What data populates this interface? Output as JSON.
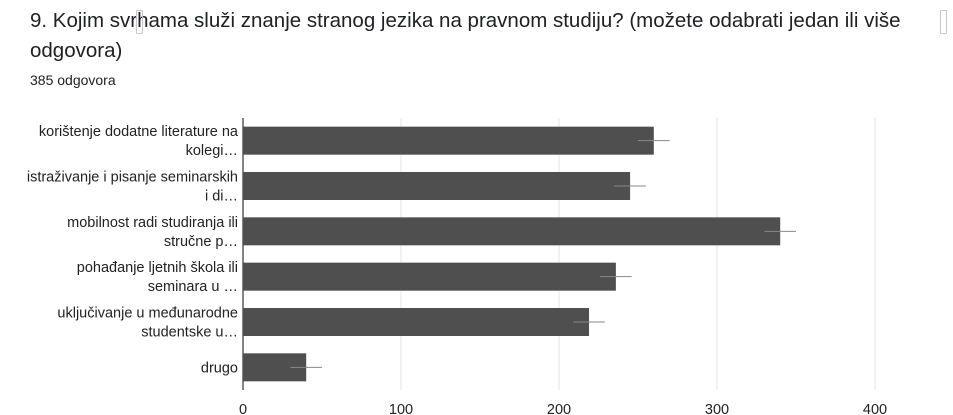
{
  "question": {
    "title": "9. Kojim svrhama služi znanje stranog jezika na pravnom studiju? (možete odabrati jedan ili više odgovora)",
    "response_count": "385 odgovora"
  },
  "colors": {
    "bar": "#4f4f4f",
    "grid": "#e6e6e6",
    "axis": "#333333",
    "error_bar": "#888888"
  },
  "chart_data": {
    "type": "bar",
    "orientation": "horizontal",
    "categories": [
      [
        "korištenje dodatne literature na",
        "kolegi…"
      ],
      [
        "istraživanje i pisanje seminarskih",
        "i di…"
      ],
      [
        "mobilnost radi studiranja ili",
        "stručne p…"
      ],
      [
        "pohađanje ljetnih škola ili",
        "seminara u …"
      ],
      [
        "uključivanje u međunarodne",
        "studentske u…"
      ],
      [
        "drugo"
      ]
    ],
    "values": [
      260,
      245,
      340,
      236,
      219,
      40
    ],
    "error": [
      10,
      10,
      10,
      10,
      10,
      10
    ],
    "xlim": [
      0,
      400
    ],
    "xticks": [
      0,
      100,
      200,
      300,
      400
    ],
    "grid": true,
    "legend": "none",
    "title": "",
    "xlabel": "",
    "ylabel": ""
  }
}
